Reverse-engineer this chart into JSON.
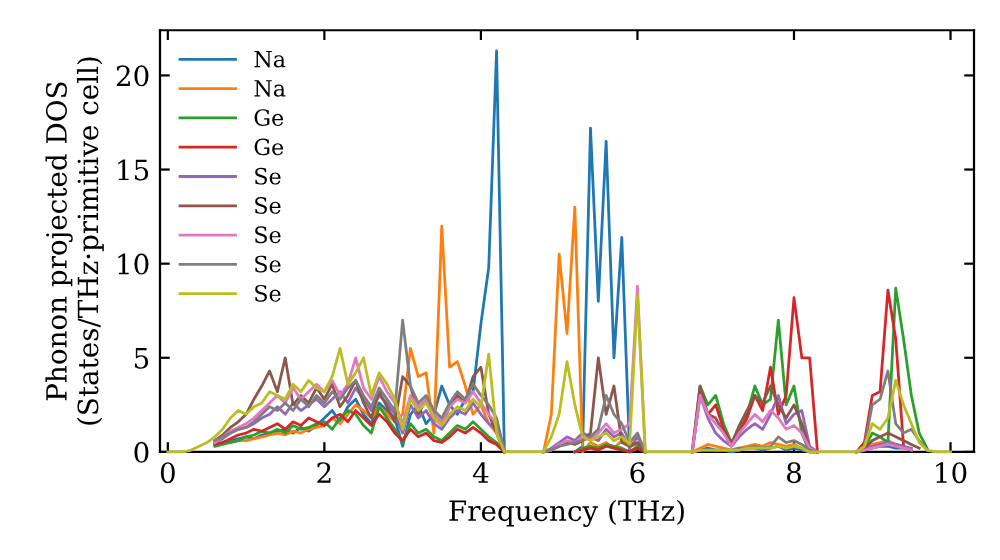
{
  "chart_data": {
    "type": "line",
    "xlabel": "Frequency (THz)",
    "ylabel": "Phonon projected DOS\n(States/THz·primitive cell)",
    "x": [
      0,
      0.1,
      0.2,
      0.3,
      0.4,
      0.5,
      0.6,
      0.7,
      0.8,
      0.9,
      1.0,
      1.1,
      1.2,
      1.3,
      1.4,
      1.5,
      1.6,
      1.7,
      1.8,
      1.9,
      2.0,
      2.1,
      2.2,
      2.3,
      2.4,
      2.5,
      2.6,
      2.7,
      2.8,
      2.9,
      3.0,
      3.1,
      3.2,
      3.3,
      3.4,
      3.5,
      3.6,
      3.7,
      3.8,
      3.9,
      4.0,
      4.1,
      4.2,
      4.3,
      4.4,
      4.5,
      4.6,
      4.7,
      4.8,
      4.9,
      5.0,
      5.1,
      5.2,
      5.3,
      5.4,
      5.5,
      5.6,
      5.7,
      5.8,
      5.9,
      6.0,
      6.1,
      6.2,
      6.3,
      6.4,
      6.5,
      6.6,
      6.7,
      6.8,
      6.9,
      7.0,
      7.1,
      7.2,
      7.3,
      7.4,
      7.5,
      7.6,
      7.7,
      7.8,
      7.9,
      8.0,
      8.1,
      8.2,
      8.3,
      8.4,
      8.5,
      8.6,
      8.7,
      8.8,
      8.9,
      9.0,
      9.1,
      9.2,
      9.3,
      9.4,
      9.5,
      9.6,
      9.7,
      9.8,
      9.9,
      10.0
    ],
    "series": [
      {
        "name": "Na",
        "color": "#1f77b4",
        "values": [
          null,
          null,
          null,
          null,
          null,
          null,
          0.4,
          0.5,
          0.6,
          0.7,
          0.8,
          0.7,
          0.9,
          1.0,
          1.1,
          1.2,
          1.0,
          1.3,
          1.1,
          1.4,
          1.8,
          2.2,
          1.6,
          2.4,
          2.8,
          2.0,
          1.5,
          2.6,
          2.2,
          1.8,
          0.3,
          2.0,
          2.5,
          1.5,
          2.0,
          3.5,
          2.5,
          2.0,
          2.8,
          3.2,
          6.8,
          9.8,
          21.3,
          0,
          null,
          null,
          null,
          null,
          null,
          null,
          null,
          null,
          0,
          0.3,
          17.2,
          8.0,
          16.5,
          5.0,
          11.4,
          0,
          0.2,
          0,
          null,
          null,
          null,
          null,
          null,
          0,
          0.1,
          0.2,
          0.1,
          0.1,
          0,
          0.1,
          0.2,
          0.2,
          0.1,
          0.2,
          0.3,
          0.1,
          0.2,
          0.1,
          0,
          0,
          null,
          null,
          null,
          null,
          0,
          0.1,
          0.2,
          0.3,
          0.3,
          0.2,
          0.2,
          0.1,
          null,
          null,
          null,
          null,
          null
        ]
      },
      {
        "name": "Na",
        "color": "#ff7f0e",
        "values": [
          null,
          null,
          null,
          null,
          null,
          null,
          null,
          null,
          0.5,
          0.6,
          0.6,
          0.7,
          0.8,
          0.9,
          1.0,
          0.9,
          1.1,
          1.0,
          1.2,
          1.3,
          1.4,
          1.8,
          1.5,
          2.0,
          2.5,
          2.2,
          1.8,
          2.4,
          2.0,
          1.6,
          2.0,
          5.5,
          4.0,
          4.2,
          1.0,
          12.0,
          4.5,
          4.8,
          3.5,
          2.0,
          2.5,
          1.5,
          1.0,
          0,
          null,
          null,
          null,
          null,
          0,
          2.0,
          10.5,
          6.3,
          13.0,
          0,
          0.5,
          0.3,
          0.5,
          0.2,
          0.6,
          0.3,
          0.4,
          0,
          null,
          null,
          null,
          null,
          null,
          0,
          0.2,
          0.4,
          0.3,
          0.2,
          0.1,
          0.2,
          0.3,
          0.4,
          0.3,
          0.5,
          0.4,
          0.3,
          0.4,
          0.2,
          0,
          0,
          null,
          null,
          null,
          null,
          0,
          0.2,
          0.4,
          0.5,
          0.6,
          0.4,
          0.3,
          null,
          null,
          null,
          null,
          null,
          null
        ]
      },
      {
        "name": "Ge",
        "color": "#2ca02c",
        "values": [
          null,
          null,
          null,
          null,
          null,
          null,
          0.3,
          0.4,
          0.5,
          0.6,
          0.8,
          0.9,
          1.1,
          1.0,
          1.2,
          1.0,
          1.4,
          1.2,
          1.3,
          1.5,
          1.6,
          1.2,
          1.8,
          2.2,
          2.0,
          1.4,
          1.0,
          2.4,
          1.8,
          1.2,
          0.5,
          1.5,
          1.0,
          1.2,
          0.8,
          0.6,
          1.0,
          1.4,
          1.2,
          1.6,
          1.2,
          0.8,
          0.5,
          0,
          null,
          null,
          null,
          null,
          null,
          null,
          null,
          null,
          0,
          0.2,
          0.3,
          0.2,
          0.4,
          0.3,
          0.2,
          0,
          0.3,
          0,
          null,
          null,
          null,
          null,
          null,
          0,
          3.5,
          2.5,
          3.0,
          1.5,
          0.5,
          1.2,
          2.0,
          3.5,
          2.5,
          2.8,
          7.0,
          2.5,
          3.5,
          1.0,
          0,
          0,
          null,
          null,
          null,
          null,
          0,
          0.2,
          1.0,
          0.8,
          0.5,
          8.7,
          6.0,
          3.0,
          1.0,
          0.2,
          null,
          null,
          null
        ]
      },
      {
        "name": "Ge",
        "color": "#d62728",
        "values": [
          null,
          null,
          null,
          null,
          null,
          null,
          0.4,
          0.5,
          0.7,
          0.9,
          1.0,
          1.2,
          1.1,
          1.3,
          1.5,
          1.2,
          1.6,
          1.4,
          1.8,
          1.6,
          1.4,
          1.8,
          2.0,
          1.6,
          2.2,
          1.8,
          1.4,
          2.0,
          1.6,
          1.0,
          0.6,
          1.2,
          0.8,
          1.0,
          0.6,
          0.5,
          0.8,
          1.2,
          1.0,
          1.3,
          1.0,
          0.6,
          0.4,
          0,
          null,
          null,
          null,
          null,
          null,
          null,
          null,
          null,
          0,
          0.1,
          0.2,
          0.1,
          0.3,
          0.2,
          0.1,
          0,
          0.2,
          0,
          null,
          null,
          null,
          null,
          null,
          0,
          3.0,
          2.0,
          2.5,
          1.2,
          0.4,
          1.0,
          1.8,
          3.0,
          2.2,
          4.5,
          2.0,
          3.0,
          8.2,
          5.0,
          5.0,
          0,
          null,
          null,
          null,
          null,
          0,
          0.5,
          3.0,
          3.2,
          8.6,
          6.0,
          0.3,
          0.1,
          null,
          null,
          null,
          null,
          null
        ]
      },
      {
        "name": "Se",
        "color": "#9467bd",
        "values": [
          null,
          null,
          null,
          null,
          null,
          null,
          0.5,
          0.7,
          1.0,
          1.2,
          1.3,
          1.5,
          1.8,
          2.0,
          2.4,
          2.0,
          2.6,
          2.2,
          2.5,
          2.8,
          2.4,
          2.8,
          3.2,
          2.6,
          3.4,
          2.8,
          2.2,
          3.0,
          2.6,
          2.0,
          1.0,
          2.5,
          1.8,
          2.2,
          1.5,
          1.2,
          1.8,
          2.2,
          2.0,
          2.6,
          2.0,
          1.5,
          1.2,
          0,
          null,
          null,
          null,
          null,
          0,
          0.2,
          0.5,
          0.8,
          0.6,
          1.0,
          0.8,
          0.6,
          1.2,
          0.8,
          1.0,
          0.2,
          0.8,
          0,
          null,
          null,
          null,
          null,
          null,
          0,
          3.0,
          1.8,
          1.0,
          0.6,
          0.3,
          0.8,
          1.2,
          1.5,
          1.2,
          2.0,
          3.0,
          1.5,
          2.0,
          2.2,
          0.3,
          0,
          null,
          null,
          null,
          null,
          0,
          0.1,
          0.3,
          0.4,
          0.5,
          0.4,
          0.3,
          0.2,
          null,
          null,
          null,
          null,
          null
        ]
      },
      {
        "name": "Se",
        "color": "#8c564b",
        "values": [
          null,
          null,
          null,
          null,
          null,
          null,
          0.6,
          0.9,
          1.3,
          1.6,
          2.0,
          2.8,
          3.5,
          4.3,
          3.2,
          5.0,
          2.5,
          3.0,
          2.6,
          3.4,
          2.8,
          3.6,
          2.4,
          3.0,
          3.8,
          2.6,
          1.8,
          3.2,
          2.4,
          1.6,
          4.0,
          3.5,
          2.0,
          2.8,
          1.8,
          1.4,
          2.4,
          3.0,
          2.6,
          4.0,
          4.5,
          2.0,
          1.0,
          0,
          null,
          null,
          null,
          null,
          0,
          0.1,
          0.3,
          0.5,
          0.4,
          0.6,
          1.0,
          5.0,
          2.0,
          3.5,
          0.5,
          0.3,
          0.5,
          0,
          null,
          null,
          null,
          null,
          null,
          0,
          3.5,
          2.0,
          1.8,
          1.0,
          0.4,
          1.4,
          2.2,
          3.0,
          2.6,
          3.5,
          2.5,
          1.8,
          2.5,
          1.5,
          0.2,
          0,
          null,
          null,
          null,
          null,
          0,
          0.2,
          0.6,
          0.8,
          1.0,
          0.8,
          0.6,
          0.4,
          0.2,
          null,
          null,
          null,
          null
        ]
      },
      {
        "name": "Se",
        "color": "#e377c2",
        "values": [
          null,
          null,
          null,
          null,
          null,
          null,
          0.5,
          0.8,
          1.1,
          1.3,
          1.5,
          1.8,
          2.2,
          2.6,
          3.0,
          2.6,
          3.4,
          2.8,
          3.2,
          3.6,
          3.2,
          3.8,
          3.0,
          3.6,
          5.0,
          3.4,
          2.8,
          4.0,
          3.2,
          2.6,
          1.5,
          3.0,
          2.4,
          2.8,
          2.0,
          1.6,
          2.4,
          2.8,
          2.6,
          3.2,
          2.6,
          2.0,
          1.5,
          0,
          null,
          null,
          null,
          null,
          0,
          0.1,
          0.4,
          0.6,
          0.5,
          0.8,
          0.7,
          1.0,
          1.5,
          1.0,
          1.2,
          1.5,
          8.8,
          0,
          null,
          null,
          null,
          null,
          null,
          0,
          3.0,
          2.0,
          1.5,
          1.0,
          0.3,
          1.0,
          1.5,
          2.0,
          1.6,
          2.2,
          1.8,
          1.2,
          1.4,
          1.0,
          0.2,
          0,
          null,
          null,
          null,
          null,
          0,
          0.1,
          0.2,
          0.3,
          0.4,
          0.3,
          0.2,
          0.1,
          null,
          null,
          null,
          null,
          null
        ]
      },
      {
        "name": "Se",
        "color": "#7f7f7f",
        "values": [
          null,
          null,
          null,
          null,
          null,
          null,
          0.6,
          0.8,
          1.0,
          1.2,
          1.3,
          1.6,
          2.0,
          2.4,
          2.2,
          2.6,
          2.2,
          2.8,
          2.4,
          3.0,
          2.6,
          3.2,
          2.8,
          3.4,
          3.8,
          3.0,
          2.4,
          3.4,
          2.8,
          2.2,
          7.0,
          3.5,
          2.6,
          3.0,
          2.2,
          1.8,
          2.6,
          3.2,
          2.8,
          3.6,
          3.0,
          2.5,
          1.8,
          0,
          null,
          null,
          null,
          null,
          0,
          0.1,
          0.3,
          0.4,
          0.5,
          0.6,
          0.8,
          1.2,
          3.0,
          2.0,
          1.5,
          0.5,
          1.0,
          0,
          null,
          null,
          null,
          null,
          null,
          0,
          0.1,
          0.1,
          0.1,
          0.1,
          0.1,
          0.2,
          0.2,
          0.3,
          0.2,
          0.3,
          0.8,
          0.5,
          0.6,
          0.4,
          0.1,
          0,
          null,
          null,
          null,
          null,
          0,
          0.3,
          2.5,
          2.8,
          4.3,
          1.5,
          1.0,
          1.2,
          0.6,
          0.1,
          null,
          null,
          null
        ]
      },
      {
        "name": "Se",
        "color": "#bcbd22",
        "values": [
          0,
          0,
          0,
          0.1,
          0.3,
          0.5,
          0.8,
          1.2,
          1.8,
          2.2,
          2.0,
          2.4,
          2.6,
          3.2,
          3.0,
          2.8,
          3.6,
          3.2,
          3.8,
          3.4,
          3.2,
          4.0,
          5.5,
          3.6,
          4.2,
          5.0,
          3.0,
          4.2,
          3.6,
          2.8,
          1.2,
          2.8,
          2.2,
          2.6,
          1.8,
          1.4,
          2.0,
          2.4,
          2.2,
          2.8,
          2.4,
          5.2,
          1.0,
          0,
          0,
          0,
          0,
          0,
          0,
          0.8,
          2.0,
          4.8,
          2.5,
          0.8,
          0.6,
          0.8,
          1.0,
          0.6,
          0.8,
          0.4,
          8.3,
          0,
          0,
          0,
          0,
          0,
          0,
          0,
          0.1,
          0.1,
          0.1,
          0.1,
          0.1,
          0.1,
          0.2,
          0.2,
          0.2,
          0.2,
          0.3,
          0.2,
          0.3,
          0.2,
          0,
          0,
          0,
          0,
          0,
          0,
          0,
          0.3,
          1.5,
          1.2,
          1.8,
          3.8,
          2.5,
          1.5,
          0.5,
          0.1,
          0,
          0,
          0
        ]
      }
    ],
    "xlim": [
      -0.1,
      10.3
    ],
    "ylim": [
      0,
      22.4
    ],
    "xticks": [
      0,
      2,
      4,
      6,
      8,
      10
    ],
    "yticks": [
      0,
      5,
      10,
      15,
      20
    ],
    "legend": "top left",
    "grid": false
  }
}
